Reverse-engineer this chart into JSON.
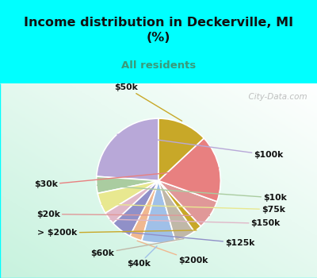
{
  "title": "Income distribution in Deckerville, MI\n(%)",
  "subtitle": "All residents",
  "title_color": "#111111",
  "subtitle_color": "#3a9a7a",
  "bg_cyan": "#00ffff",
  "labels": [
    "$100k",
    "$10k",
    "$75k",
    "$150k",
    "$125k",
    "$200k",
    "$40k",
    "$60k",
    "> $200k",
    "$20k",
    "$30k",
    "$50k"
  ],
  "values": [
    22,
    4,
    5,
    3,
    5,
    3,
    8,
    5,
    2,
    7,
    16,
    12
  ],
  "colors": [
    "#b8a8d8",
    "#aacca0",
    "#e8e890",
    "#e8b8c8",
    "#8888cc",
    "#f0b090",
    "#90b8e8",
    "#c0b8a8",
    "#c8a020",
    "#e09090",
    "#e87878",
    "#c8a020"
  ],
  "colors2": [
    "#b8a8d8",
    "#aacca0",
    "#e8e890",
    "#e0b8c8",
    "#9090c8",
    "#f0b890",
    "#a0c0e8",
    "#c0b8a8",
    "#c8a828",
    "#e09898",
    "#e88080",
    "#c8a828"
  ],
  "startangle": 90,
  "label_fontsize": 7.8,
  "watermark": "  City-Data.com"
}
